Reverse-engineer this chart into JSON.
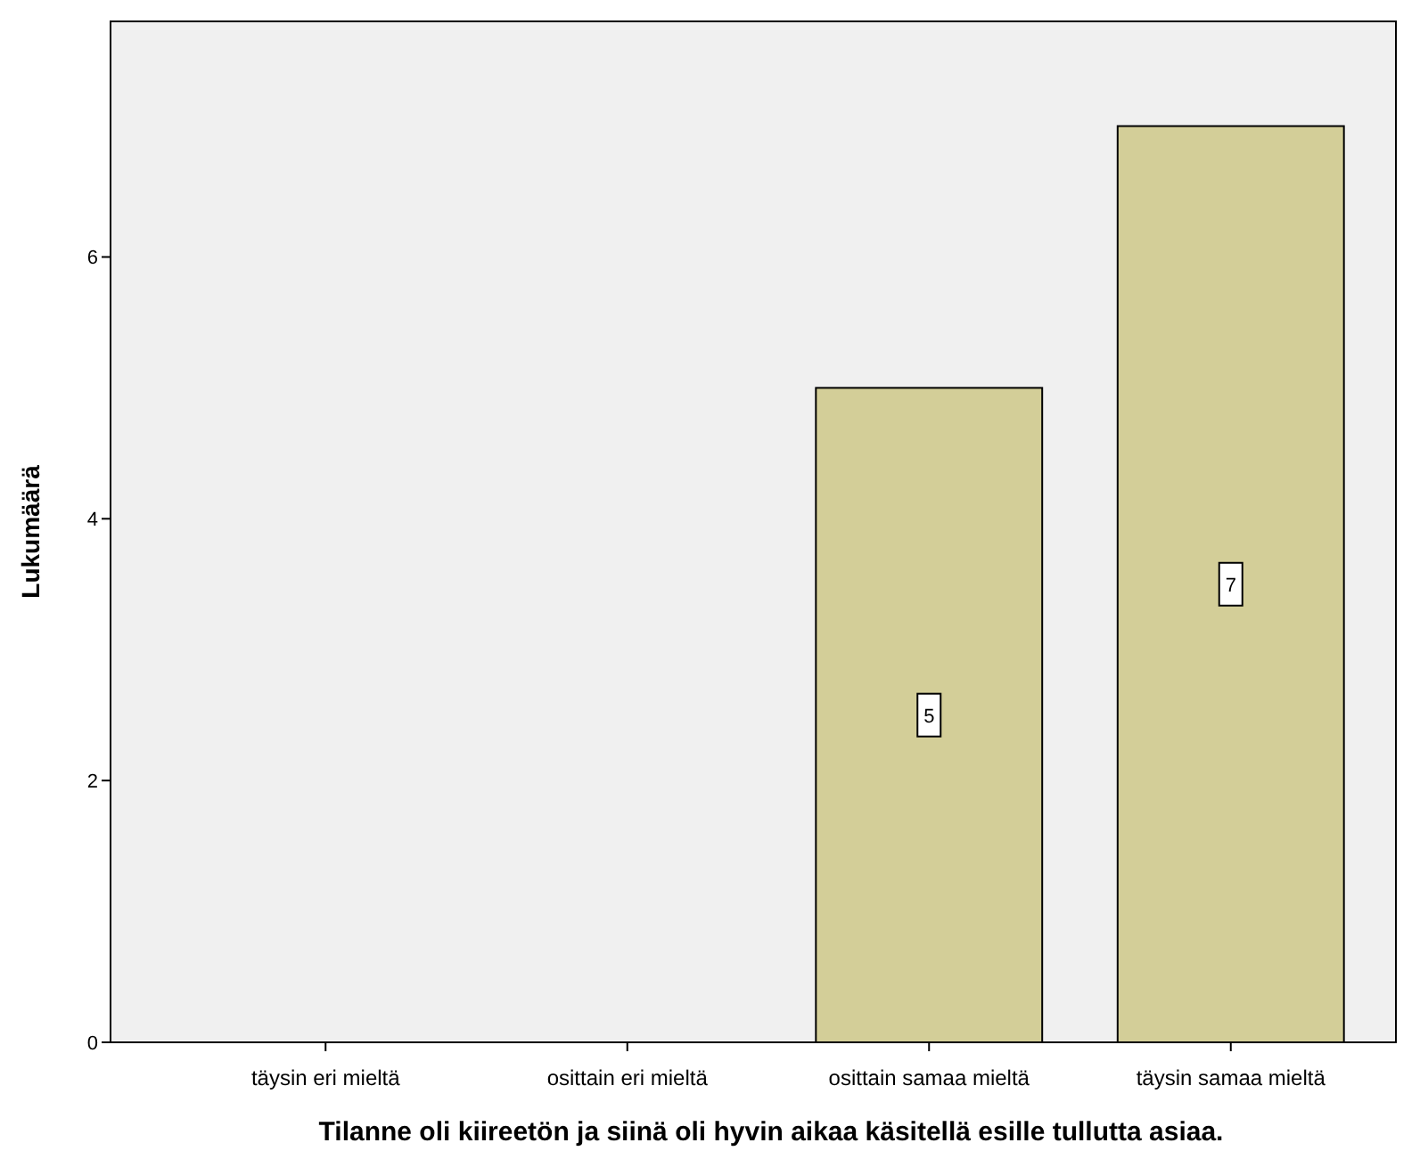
{
  "chart_data": {
    "type": "bar",
    "xlabel": "Tilanne oli kiireetön ja siinä oli hyvin aikaa käsitellä esille tullutta asiaa.",
    "ylabel": "Lukumäärä",
    "categories": [
      "täysin eri mieltä",
      "osittain eri mieltä",
      "osittain samaa mieltä",
      "täysin samaa mieltä"
    ],
    "values": [
      0,
      0,
      5,
      7
    ],
    "color": "#d3ce98",
    "value_labels": [
      null,
      null,
      "5",
      "7"
    ],
    "ylim": [
      0,
      7.8
    ],
    "yticks": [
      0,
      2,
      4,
      6
    ],
    "grid": false
  }
}
